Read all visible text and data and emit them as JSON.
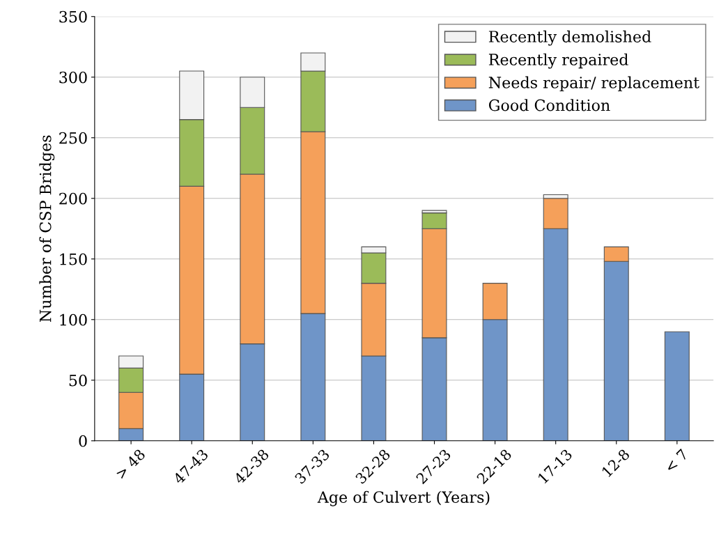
{
  "chart_data": {
    "type": "bar",
    "stacked": true,
    "xlabel": "Age of Culvert (Years)",
    "ylabel": "Number of CSP Bridges",
    "categories": [
      "> 48",
      "47-43",
      "42-38",
      "37-33",
      "32-28",
      "27-23",
      "22-18",
      "17-13",
      "12-8",
      "< 7"
    ],
    "series": [
      {
        "name": "Good Condition",
        "color": "#6f95c8",
        "values": [
          10,
          55,
          80,
          105,
          70,
          85,
          100,
          175,
          148,
          90
        ]
      },
      {
        "name": "Needs repair/ replacement",
        "color": "#f5a05a",
        "values": [
          30,
          155,
          140,
          150,
          60,
          90,
          30,
          25,
          12,
          null
        ]
      },
      {
        "name": "Recently repaired",
        "color": "#9bbb59",
        "values": [
          20,
          55,
          55,
          50,
          25,
          13,
          null,
          null,
          null,
          null
        ]
      },
      {
        "name": "Recently demolished",
        "color": "#f2f2f2",
        "values": [
          10,
          40,
          25,
          15,
          5,
          2,
          null,
          3,
          null,
          null
        ]
      }
    ],
    "ylim": [
      0,
      350
    ],
    "yticks": [
      0,
      50,
      100,
      150,
      200,
      250,
      300,
      350
    ],
    "grid": "y",
    "legend": "top right"
  }
}
